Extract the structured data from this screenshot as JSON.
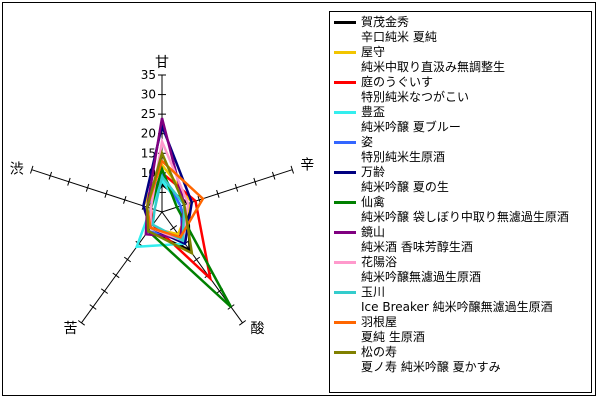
{
  "chart_data": {
    "type": "radar",
    "axes": [
      "甘",
      "辛",
      "酸",
      "苦",
      "渋"
    ],
    "rlim": [
      0,
      35
    ],
    "ticks": [
      5,
      10,
      15,
      20,
      25,
      30,
      35
    ],
    "series": [
      {
        "name": "賀茂金秀",
        "sub": "辛口純米 夏純",
        "color": "#000000",
        "values": [
          7,
          7,
          12,
          6,
          4
        ]
      },
      {
        "name": "屋守",
        "sub": "純米中取り直汲み無調整生",
        "color": "#f2c500",
        "values": [
          12,
          8,
          7,
          5,
          5
        ]
      },
      {
        "name": "庭のうぐいす",
        "sub": "特別純米なつがこい",
        "color": "#ff0000",
        "values": [
          10,
          9,
          21,
          4,
          3
        ]
      },
      {
        "name": "豊盃",
        "sub": "純米吟醸 夏ブルー",
        "color": "#33eeee",
        "values": [
          8,
          5,
          10,
          11,
          3
        ]
      },
      {
        "name": "姿",
        "sub": "特別純米生原酒",
        "color": "#3366ff",
        "values": [
          10,
          5,
          9,
          6,
          4
        ]
      },
      {
        "name": "万齢",
        "sub": "純米吟醸 夏の生",
        "color": "#000080",
        "values": [
          22,
          8,
          10,
          5,
          5
        ]
      },
      {
        "name": "仙禽",
        "sub": "純米吟醸 袋しぼり中取り無濾過生原酒",
        "color": "#008000",
        "values": [
          11,
          4,
          30,
          6,
          3
        ]
      },
      {
        "name": "鏡山",
        "sub": "純米酒 香味芳醇生酒",
        "color": "#800080",
        "values": [
          24,
          6,
          8,
          7,
          4
        ]
      },
      {
        "name": "花陽浴",
        "sub": "純米吟醸無濾過生原酒",
        "color": "#ff99cc",
        "values": [
          18,
          7,
          9,
          5,
          3
        ]
      },
      {
        "name": "玉川",
        "sub": "Ice Breaker 純米吟醸無濾過生原酒",
        "color": "#33cccc",
        "values": [
          9,
          6,
          9,
          4,
          2
        ]
      },
      {
        "name": "羽根屋",
        "sub": "夏純 生原酒",
        "color": "#ff6600",
        "values": [
          13,
          11,
          8,
          5,
          4
        ]
      },
      {
        "name": "松の寿",
        "sub": "夏ノ寿 純米吟醸 夏かすみ",
        "color": "#808000",
        "values": [
          15,
          6,
          13,
          6,
          4
        ]
      }
    ]
  }
}
